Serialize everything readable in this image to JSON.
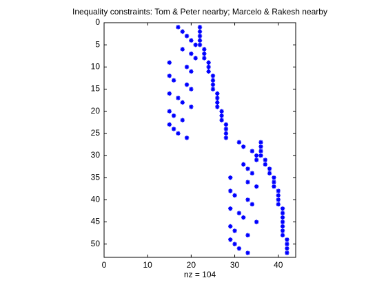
{
  "chart_data": {
    "type": "scatter",
    "title": "Inequality constraints: Tom & Peter nearby; Marcelo & Rakesh nearby",
    "xlabel": "nz = 104",
    "color": "#0000ff",
    "y_reversed": true,
    "xlim": [
      0,
      44
    ],
    "xticks": [
      0,
      10,
      20,
      30,
      40
    ],
    "ylim": [
      0,
      53
    ],
    "yticks": [
      0,
      5,
      10,
      15,
      20,
      25,
      30,
      35,
      40,
      45,
      50
    ],
    "x": [
      17,
      22,
      18,
      22,
      19,
      22,
      20,
      22,
      21,
      22,
      18,
      23,
      20,
      23,
      21,
      23,
      15,
      24,
      19,
      24,
      20,
      24,
      15,
      25,
      16,
      25,
      19,
      25,
      20,
      25,
      15,
      26,
      17,
      26,
      18,
      26,
      20,
      26,
      15,
      27,
      16,
      27,
      18,
      27,
      15,
      28,
      16,
      28,
      17,
      28,
      19,
      28,
      31,
      36,
      32,
      36,
      34,
      36,
      35,
      36,
      35,
      37,
      32,
      37,
      33,
      38,
      34,
      38,
      29,
      39,
      33,
      39,
      35,
      39,
      29,
      40,
      30,
      40,
      33,
      40,
      34,
      40,
      29,
      41,
      31,
      41,
      32,
      41,
      35,
      41,
      29,
      41,
      30,
      41,
      33,
      41,
      29,
      42,
      30,
      42,
      31,
      42,
      33,
      42
    ],
    "y": [
      1,
      1,
      2,
      2,
      3,
      3,
      4,
      4,
      5,
      5,
      6,
      6,
      7,
      7,
      8,
      8,
      9,
      9,
      10,
      10,
      11,
      11,
      12,
      12,
      13,
      13,
      14,
      14,
      15,
      15,
      16,
      16,
      17,
      17,
      18,
      18,
      19,
      19,
      20,
      20,
      21,
      21,
      22,
      22,
      23,
      23,
      24,
      24,
      25,
      25,
      26,
      26,
      27,
      27,
      28,
      28,
      29,
      29,
      30,
      30,
      31,
      31,
      32,
      32,
      33,
      33,
      34,
      34,
      35,
      35,
      36,
      36,
      37,
      37,
      38,
      38,
      39,
      39,
      40,
      40,
      41,
      41,
      42,
      42,
      43,
      43,
      44,
      44,
      45,
      45,
      46,
      46,
      47,
      47,
      48,
      48,
      49,
      49,
      50,
      50,
      51,
      51,
      52,
      52
    ]
  }
}
